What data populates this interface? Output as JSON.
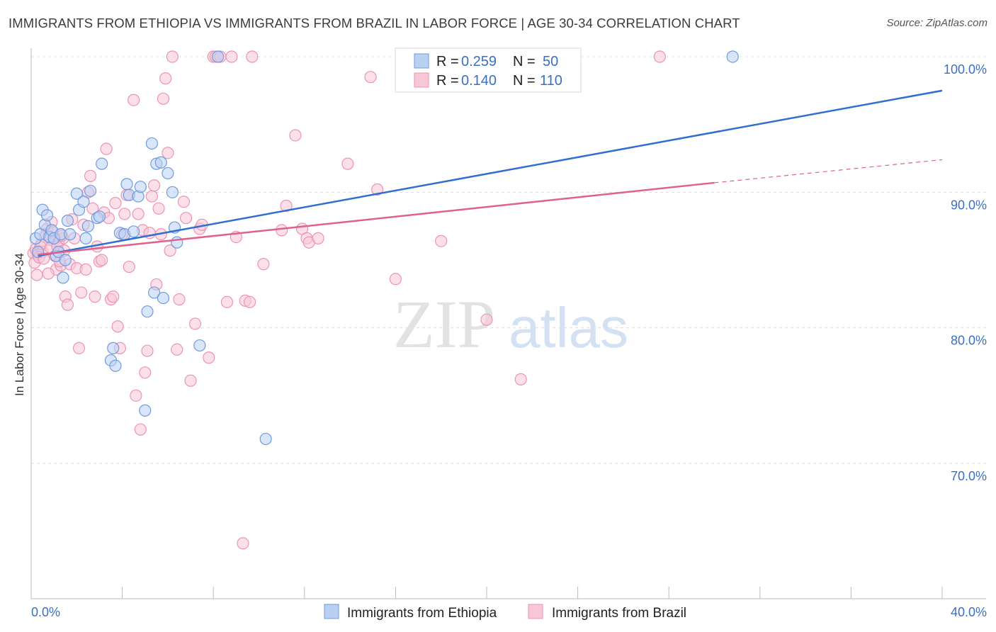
{
  "title": "IMMIGRANTS FROM ETHIOPIA VS IMMIGRANTS FROM BRAZIL IN LABOR FORCE | AGE 30-34 CORRELATION CHART",
  "source": "Source: ZipAtlas.com",
  "watermark": {
    "zip": "ZIP",
    "atlas": "atlas"
  },
  "legend": {
    "r_label": "R =",
    "n_label": "N =",
    "series": [
      {
        "r": "0.259",
        "n": "50"
      },
      {
        "r": "0.140",
        "n": "110"
      }
    ]
  },
  "chart_data": {
    "type": "scatter",
    "title": "IMMIGRANTS FROM ETHIOPIA VS IMMIGRANTS FROM BRAZIL IN LABOR FORCE | AGE 30-34 CORRELATION CHART",
    "xlabel": "",
    "ylabel": "In Labor Force | Age 30-34",
    "xlim": [
      0,
      40
    ],
    "ylim": [
      61,
      102
    ],
    "x_tick_labels": [
      "0.0%",
      "40.0%"
    ],
    "y_ticks": [
      70,
      80,
      90,
      100
    ],
    "y_tick_labels": [
      "70.0%",
      "80.0%",
      "90.0%",
      "100.0%"
    ],
    "grid": true,
    "legend_position": "top-center",
    "series": [
      {
        "name": "Immigrants from Ethiopia",
        "color": "#6f9be0",
        "fill": "#b9d0f2",
        "line_color": "#2f6fd0",
        "trend": {
          "x": [
            0.3,
            40
          ],
          "y": [
            85.3,
            97.5
          ]
        },
        "points": [
          [
            0.2,
            86.6
          ],
          [
            0.3,
            85.6
          ],
          [
            0.4,
            86.9
          ],
          [
            0.5,
            88.7
          ],
          [
            0.6,
            87.6
          ],
          [
            0.7,
            88.3
          ],
          [
            0.8,
            86.7
          ],
          [
            0.9,
            87.2
          ],
          [
            1.0,
            86.6
          ],
          [
            1.1,
            85.3
          ],
          [
            1.2,
            85.6
          ],
          [
            1.3,
            86.9
          ],
          [
            1.4,
            83.7
          ],
          [
            1.5,
            85.0
          ],
          [
            1.6,
            87.9
          ],
          [
            1.7,
            86.9
          ],
          [
            2.0,
            89.9
          ],
          [
            2.1,
            88.7
          ],
          [
            2.3,
            89.3
          ],
          [
            2.4,
            86.6
          ],
          [
            2.5,
            87.5
          ],
          [
            2.6,
            90.1
          ],
          [
            2.9,
            88.1
          ],
          [
            3.0,
            88.2
          ],
          [
            3.1,
            92.1
          ],
          [
            3.5,
            77.6
          ],
          [
            3.6,
            78.5
          ],
          [
            3.7,
            77.2
          ],
          [
            3.9,
            87.0
          ],
          [
            4.1,
            86.9
          ],
          [
            4.2,
            90.6
          ],
          [
            4.3,
            89.8
          ],
          [
            4.5,
            87.1
          ],
          [
            4.7,
            89.7
          ],
          [
            4.8,
            90.4
          ],
          [
            5.0,
            73.9
          ],
          [
            5.1,
            81.2
          ],
          [
            5.3,
            93.6
          ],
          [
            5.4,
            82.6
          ],
          [
            5.5,
            92.1
          ],
          [
            5.7,
            92.2
          ],
          [
            5.8,
            82.2
          ],
          [
            6.0,
            91.4
          ],
          [
            6.2,
            90.0
          ],
          [
            6.3,
            87.4
          ],
          [
            6.4,
            86.3
          ],
          [
            7.4,
            78.7
          ],
          [
            8.2,
            100.0
          ],
          [
            10.3,
            71.8
          ],
          [
            30.8,
            100.0
          ]
        ]
      },
      {
        "name": "Immigrants from Brazil",
        "color": "#ec94b5",
        "fill": "#f7c6d7",
        "line_color": "#e0608e",
        "trend": {
          "x": [
            0.3,
            30.0
          ],
          "y": [
            85.4,
            90.7
          ]
        },
        "trend_dashed": {
          "x": [
            30.0,
            40
          ],
          "y": [
            90.7,
            92.4
          ]
        },
        "points": [
          [
            0.1,
            85.5
          ],
          [
            0.2,
            85.8
          ],
          [
            0.3,
            85.4
          ],
          [
            0.4,
            86.0
          ],
          [
            0.5,
            85.6
          ],
          [
            0.6,
            86.7
          ],
          [
            0.7,
            87.3
          ],
          [
            0.8,
            86.5
          ],
          [
            0.9,
            87.8
          ],
          [
            1.0,
            86.4
          ],
          [
            1.1,
            84.3
          ],
          [
            1.2,
            86.3
          ],
          [
            1.3,
            84.6
          ],
          [
            1.4,
            86.6
          ],
          [
            1.5,
            82.3
          ],
          [
            1.6,
            81.7
          ],
          [
            1.7,
            84.7
          ],
          [
            1.8,
            88.0
          ],
          [
            1.9,
            86.6
          ],
          [
            2.0,
            84.4
          ],
          [
            2.1,
            78.5
          ],
          [
            2.2,
            82.6
          ],
          [
            2.3,
            87.6
          ],
          [
            2.4,
            84.3
          ],
          [
            2.5,
            90.0
          ],
          [
            2.6,
            91.2
          ],
          [
            2.7,
            88.8
          ],
          [
            2.8,
            82.3
          ],
          [
            2.9,
            86.0
          ],
          [
            3.0,
            84.9
          ],
          [
            3.1,
            85.0
          ],
          [
            3.2,
            88.5
          ],
          [
            3.3,
            93.2
          ],
          [
            3.4,
            88.1
          ],
          [
            3.5,
            82.1
          ],
          [
            3.6,
            82.3
          ],
          [
            3.7,
            89.2
          ],
          [
            3.8,
            80.1
          ],
          [
            3.9,
            78.5
          ],
          [
            4.0,
            86.9
          ],
          [
            4.1,
            88.4
          ],
          [
            4.2,
            89.8
          ],
          [
            4.3,
            84.5
          ],
          [
            4.5,
            96.8
          ],
          [
            4.6,
            75.0
          ],
          [
            4.7,
            88.4
          ],
          [
            4.8,
            72.5
          ],
          [
            4.9,
            87.2
          ],
          [
            5.0,
            76.7
          ],
          [
            5.1,
            78.3
          ],
          [
            5.2,
            87.0
          ],
          [
            5.3,
            89.7
          ],
          [
            5.4,
            90.5
          ],
          [
            5.5,
            83.2
          ],
          [
            5.6,
            88.8
          ],
          [
            5.7,
            86.9
          ],
          [
            5.8,
            96.9
          ],
          [
            5.9,
            98.4
          ],
          [
            6.0,
            92.9
          ],
          [
            6.1,
            85.7
          ],
          [
            6.2,
            100.0
          ],
          [
            6.4,
            78.4
          ],
          [
            6.5,
            82.1
          ],
          [
            6.7,
            89.3
          ],
          [
            6.8,
            88.1
          ],
          [
            7.0,
            76.1
          ],
          [
            7.2,
            80.3
          ],
          [
            7.4,
            87.3
          ],
          [
            7.5,
            87.6
          ],
          [
            7.8,
            77.8
          ],
          [
            8.0,
            100.0
          ],
          [
            8.1,
            100.0
          ],
          [
            8.3,
            100.0
          ],
          [
            8.6,
            81.9
          ],
          [
            8.8,
            100.0
          ],
          [
            9.0,
            86.7
          ],
          [
            9.3,
            64.1
          ],
          [
            9.4,
            82.0
          ],
          [
            9.6,
            81.9
          ],
          [
            9.7,
            100.0
          ],
          [
            10.2,
            84.7
          ],
          [
            11.0,
            87.2
          ],
          [
            11.2,
            89.0
          ],
          [
            11.6,
            94.2
          ],
          [
            11.9,
            87.3
          ],
          [
            12.1,
            86.6
          ],
          [
            12.2,
            86.3
          ],
          [
            12.6,
            86.6
          ],
          [
            13.9,
            92.1
          ],
          [
            14.9,
            98.5
          ],
          [
            15.2,
            90.2
          ],
          [
            16.0,
            83.6
          ],
          [
            18.0,
            86.4
          ],
          [
            20.0,
            80.6
          ],
          [
            21.5,
            76.2
          ],
          [
            27.6,
            100.0
          ],
          [
            0.15,
            84.8
          ],
          [
            0.25,
            83.9
          ],
          [
            0.35,
            85.2
          ],
          [
            0.45,
            86.2
          ],
          [
            0.55,
            85.1
          ],
          [
            0.65,
            86.9
          ],
          [
            0.75,
            84.0
          ],
          [
            0.85,
            85.9
          ],
          [
            0.95,
            87.1
          ],
          [
            1.05,
            85.3
          ],
          [
            1.15,
            86.0
          ],
          [
            1.25,
            84.9
          ],
          [
            1.35,
            86.8
          ],
          [
            1.45,
            85.7
          ]
        ]
      }
    ]
  },
  "y_axis_title": "In Labor Force | Age 30-34"
}
